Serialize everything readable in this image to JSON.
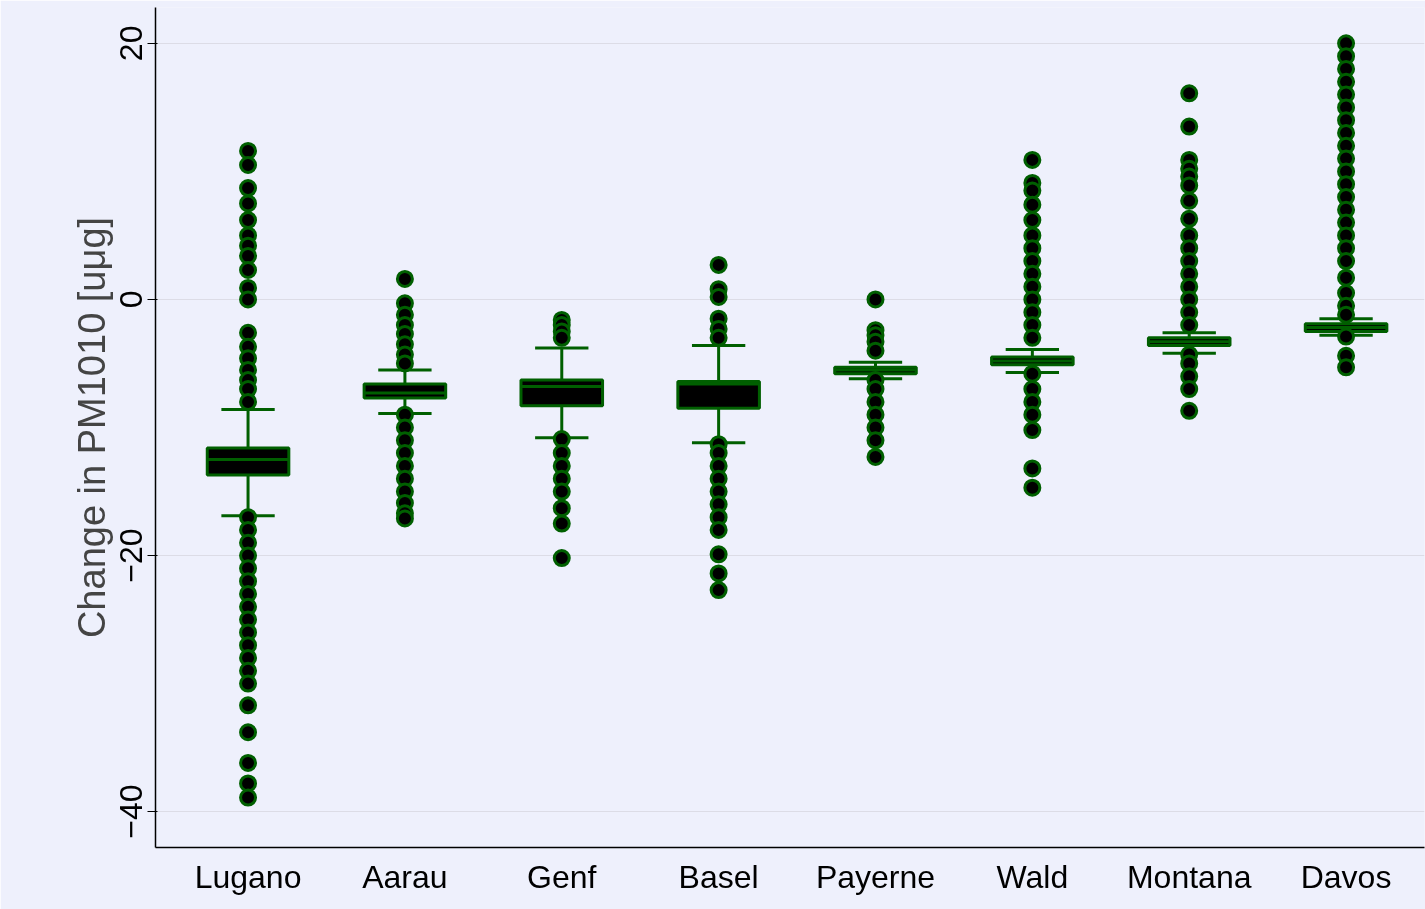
{
  "chart_data": {
    "type": "box",
    "ylabel": "Change in PM1010 [uμg]",
    "categories": [
      "Lugano",
      "Aarau",
      "Genf",
      "Basel",
      "Payerne",
      "Wald",
      "Montana",
      "Davos"
    ],
    "color": "#005f00",
    "ylim": [
      -42.8,
      22.8
    ],
    "yticks": [
      -40,
      -20,
      0,
      20
    ],
    "grid": "y",
    "boxes": [
      {
        "low": -16.9,
        "q1": -13.7,
        "median": -12.5,
        "q3": -11.6,
        "high": -8.6,
        "outliers": [
          11.6,
          10.5,
          8.7,
          7.5,
          6.2,
          5.0,
          4.2,
          3.4,
          2.3,
          0.9,
          0,
          -2.6,
          -3.7,
          -4.6,
          -5.5,
          -6.3,
          -7.0,
          -8.0,
          -17.0,
          -18,
          -19,
          -20,
          -21,
          -22,
          -23,
          -24,
          -25,
          -26,
          -27,
          -28,
          -29,
          -30,
          -31.7,
          -33.8,
          -36.2,
          -37.8,
          -38.9
        ]
      },
      {
        "low": -8.9,
        "q1": -7.7,
        "median": -7.3,
        "q3": -6.6,
        "high": -5.5,
        "outliers": [
          1.6,
          -0.3,
          -1.2,
          -2,
          -2.7,
          -3.5,
          -4.3,
          -5.0,
          -9.0,
          -10,
          -11,
          -12,
          -13,
          -14,
          -15,
          -15.9,
          -16.7,
          -17.1
        ]
      },
      {
        "low": -10.8,
        "q1": -8.3,
        "median": -6.8,
        "q3": -6.3,
        "high": -3.8,
        "outliers": [
          -1.6,
          -2.0,
          -2.5,
          -3.0,
          -10.9,
          -12,
          -13,
          -14,
          -15,
          -16.3,
          -17.5,
          -20.2
        ]
      },
      {
        "low": -11.2,
        "q1": -8.5,
        "median": -6.6,
        "q3": -6.4,
        "high": -3.6,
        "outliers": [
          2.7,
          0.8,
          0.2,
          -1.5,
          -2.3,
          -3.0,
          -11.3,
          -12,
          -13,
          -14,
          -15,
          -16,
          -17,
          -18,
          -19.9,
          -21.4,
          -22.7
        ]
      },
      {
        "low": -6.2,
        "q1": -5.8,
        "median": -5.5,
        "q3": -5.3,
        "high": -4.9,
        "outliers": [
          0,
          -2.4,
          -2.8,
          -3.3,
          -4.0,
          -6.3,
          -7,
          -8,
          -9,
          -10,
          -11,
          -12.3
        ]
      },
      {
        "low": -5.7,
        "q1": -5.1,
        "median": -4.8,
        "q3": -4.5,
        "high": -3.9,
        "outliers": [
          10.9,
          9.1,
          8.5,
          7.4,
          6.2,
          5.0,
          4.0,
          3.0,
          2,
          1,
          0,
          -1,
          -2,
          -3,
          -5.8,
          -7,
          -8,
          -9,
          -10.2,
          -13.2,
          -14.7
        ]
      },
      {
        "low": -4.2,
        "q1": -3.6,
        "median": -3.3,
        "q3": -3.0,
        "high": -2.6,
        "outliers": [
          16.1,
          13.5,
          10.9,
          10.2,
          9.6,
          8.9,
          7.7,
          6.3,
          5,
          4,
          3,
          2,
          1,
          0,
          -1,
          -2,
          -4.3,
          -5,
          -6,
          -7.0,
          -8.7
        ]
      },
      {
        "low": -2.8,
        "q1": -2.5,
        "median": -2.2,
        "q3": -1.9,
        "high": -1.5,
        "outliers": [
          20,
          19,
          18,
          17,
          16,
          15,
          14,
          13,
          12,
          11,
          10,
          9,
          8,
          7,
          6,
          5,
          4,
          3,
          1.7,
          0.5,
          -0.5,
          -1.2,
          -2.9,
          -4.4,
          -5.3
        ]
      }
    ]
  }
}
